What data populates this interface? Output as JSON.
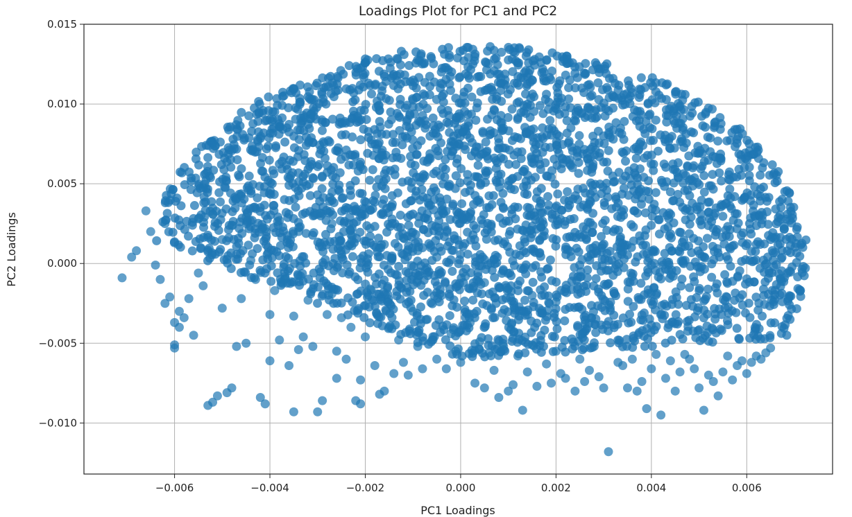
{
  "chart_data": {
    "type": "scatter",
    "title": "Loadings Plot for PC1 and PC2",
    "xlabel": "PC1 Loadings",
    "ylabel": "PC2 Loadings",
    "xlim": [
      -0.0079,
      0.0078
    ],
    "ylim": [
      -0.0132,
      0.015
    ],
    "x_ticks": [
      -0.006,
      -0.004,
      -0.002,
      0.0,
      0.002,
      0.004,
      0.006
    ],
    "x_tick_labels": [
      "−0.006",
      "−0.004",
      "−0.002",
      "0.000",
      "0.002",
      "0.004",
      "0.006"
    ],
    "y_ticks": [
      -0.01,
      -0.005,
      0.0,
      0.005,
      0.01,
      0.015
    ],
    "y_tick_labels": [
      "−0.010",
      "−0.005",
      "0.000",
      "0.005",
      "0.010",
      "0.015"
    ],
    "grid": true,
    "legend": "none",
    "marker_color": "#1f77b4",
    "marker_alpha": 0.7,
    "points": [
      [
        -0.0071,
        -0.0009
      ],
      [
        -0.0069,
        0.0004
      ],
      [
        -0.0068,
        0.0008
      ],
      [
        -0.0066,
        0.0033
      ],
      [
        -0.0065,
        0.002
      ],
      [
        -0.0064,
        -0.0001
      ],
      [
        -0.0063,
        -0.001
      ],
      [
        -0.0062,
        0.0025
      ],
      [
        -0.0062,
        -0.0025
      ],
      [
        -0.0061,
        -0.0021
      ],
      [
        -0.006,
        -0.0037
      ],
      [
        -0.006,
        -0.0051
      ],
      [
        -0.006,
        -0.0053
      ],
      [
        -0.0059,
        -0.003
      ],
      [
        -0.0059,
        -0.004
      ],
      [
        -0.0058,
        -0.0034
      ],
      [
        -0.0057,
        -0.0022
      ],
      [
        -0.0056,
        -0.0045
      ],
      [
        -0.0055,
        -0.0006
      ],
      [
        -0.0054,
        -0.0014
      ],
      [
        -0.0053,
        -0.0089
      ],
      [
        -0.0052,
        -0.0087
      ],
      [
        -0.0051,
        -0.0083
      ],
      [
        -0.005,
        -0.0028
      ],
      [
        -0.005,
        0.0015
      ],
      [
        -0.0049,
        -0.0081
      ],
      [
        -0.0048,
        -0.0078
      ],
      [
        -0.0047,
        -0.0052
      ],
      [
        -0.0046,
        -0.0022
      ],
      [
        -0.0045,
        -0.005
      ],
      [
        -0.0044,
        0.0002
      ],
      [
        -0.0043,
        -0.001
      ],
      [
        -0.0042,
        -0.0084
      ],
      [
        -0.0041,
        -0.0088
      ],
      [
        -0.004,
        -0.0032
      ],
      [
        -0.004,
        -0.0061
      ],
      [
        -0.0039,
        -0.0017
      ],
      [
        -0.0038,
        -0.0048
      ],
      [
        -0.0037,
        -0.001
      ],
      [
        -0.0036,
        -0.0064
      ],
      [
        -0.0035,
        -0.0033
      ],
      [
        -0.0035,
        -0.0093
      ],
      [
        -0.0034,
        -0.0054
      ],
      [
        -0.0033,
        -0.0046
      ],
      [
        -0.0032,
        -0.0023
      ],
      [
        -0.0031,
        -0.0052
      ],
      [
        -0.003,
        -0.0093
      ],
      [
        -0.0029,
        -0.0086
      ],
      [
        -0.0028,
        -0.0032
      ],
      [
        -0.0027,
        -0.0019
      ],
      [
        -0.0026,
        -0.0072
      ],
      [
        -0.0026,
        -0.0055
      ],
      [
        -0.0025,
        -0.0034
      ],
      [
        -0.0024,
        -0.006
      ],
      [
        -0.0023,
        -0.004
      ],
      [
        -0.0022,
        -0.0086
      ],
      [
        -0.0021,
        -0.0088
      ],
      [
        -0.0021,
        -0.0073
      ],
      [
        -0.002,
        -0.0046
      ],
      [
        -0.0019,
        -0.0016
      ],
      [
        -0.0018,
        -0.0064
      ],
      [
        -0.0017,
        -0.0082
      ],
      [
        -0.0016,
        -0.008
      ],
      [
        -0.0015,
        -0.004
      ],
      [
        -0.0014,
        -0.0069
      ],
      [
        -0.0013,
        -0.0048
      ],
      [
        -0.0012,
        -0.0062
      ],
      [
        -0.0011,
        -0.007
      ],
      [
        -0.001,
        -0.003
      ],
      [
        -0.0009,
        -0.0052
      ],
      [
        -0.0008,
        -0.0066
      ],
      [
        -0.0007,
        -0.0035
      ],
      [
        -0.0006,
        -0.0048
      ],
      [
        -0.0005,
        -0.006
      ],
      [
        -0.0004,
        -0.002
      ],
      [
        -0.0003,
        -0.0066
      ],
      [
        -0.0002,
        -0.0044
      ],
      [
        -0.0001,
        -0.0055
      ],
      [
        0.0,
        -0.0062
      ],
      [
        0.0002,
        -0.0037
      ],
      [
        0.0003,
        -0.0075
      ],
      [
        0.0004,
        -0.0049
      ],
      [
        0.0005,
        -0.0078
      ],
      [
        0.0006,
        -0.0056
      ],
      [
        0.0007,
        -0.0067
      ],
      [
        0.0008,
        -0.0084
      ],
      [
        0.0009,
        -0.0052
      ],
      [
        0.001,
        -0.008
      ],
      [
        0.0011,
        -0.0076
      ],
      [
        0.0012,
        -0.0058
      ],
      [
        0.0013,
        -0.0092
      ],
      [
        0.0014,
        -0.0068
      ],
      [
        0.0015,
        -0.0051
      ],
      [
        0.0016,
        -0.0077
      ],
      [
        0.0018,
        -0.0063
      ],
      [
        0.0019,
        -0.0075
      ],
      [
        0.002,
        -0.0055
      ],
      [
        0.0021,
        -0.0069
      ],
      [
        0.0022,
        -0.0072
      ],
      [
        0.0024,
        -0.008
      ],
      [
        0.0025,
        -0.006
      ],
      [
        0.0026,
        -0.0074
      ],
      [
        0.0027,
        -0.0067
      ],
      [
        0.0028,
        -0.0052
      ],
      [
        0.0029,
        -0.0071
      ],
      [
        0.003,
        -0.0078
      ],
      [
        0.0031,
        -0.0118
      ],
      [
        0.0033,
        -0.0062
      ],
      [
        0.0034,
        -0.0064
      ],
      [
        0.0035,
        -0.0078
      ],
      [
        0.0036,
        -0.006
      ],
      [
        0.0037,
        -0.008
      ],
      [
        0.0038,
        -0.0074
      ],
      [
        0.0039,
        -0.0091
      ],
      [
        0.004,
        -0.0066
      ],
      [
        0.0041,
        -0.0057
      ],
      [
        0.0042,
        -0.0095
      ],
      [
        0.0043,
        -0.0072
      ],
      [
        0.0044,
        -0.0061
      ],
      [
        0.0045,
        -0.008
      ],
      [
        0.0046,
        -0.0068
      ],
      [
        0.0047,
        -0.0057
      ],
      [
        0.0048,
        -0.006
      ],
      [
        0.0049,
        -0.0066
      ],
      [
        0.005,
        -0.0078
      ],
      [
        0.0051,
        -0.0092
      ],
      [
        0.0052,
        -0.007
      ],
      [
        0.0053,
        -0.0074
      ],
      [
        0.0054,
        -0.0083
      ],
      [
        0.0055,
        -0.0068
      ],
      [
        0.0056,
        -0.0058
      ],
      [
        0.0057,
        -0.0073
      ],
      [
        0.0058,
        -0.0064
      ],
      [
        0.0059,
        -0.0061
      ],
      [
        0.006,
        -0.0069
      ],
      [
        0.0061,
        -0.0062
      ],
      [
        0.0062,
        -0.0058
      ],
      [
        0.0063,
        -0.006
      ],
      [
        0.0064,
        -0.0056
      ],
      [
        0.0065,
        -0.0053
      ],
      [
        -0.0055,
        0.0028
      ],
      [
        -0.0052,
        0.0031
      ],
      [
        -0.0048,
        0.0024
      ],
      [
        -0.0045,
        0.0029
      ],
      [
        -0.0041,
        0.0022
      ],
      [
        -0.0038,
        0.0027
      ],
      [
        -0.0034,
        0.002
      ],
      [
        -0.003,
        0.0031
      ],
      [
        -0.0027,
        0.0025
      ],
      [
        -0.0023,
        0.0018
      ],
      [
        -0.0019,
        0.0022
      ],
      [
        -0.0016,
        0.0012
      ],
      [
        -0.0012,
        0.0016
      ],
      [
        -0.0009,
        0.0008
      ],
      [
        -0.0005,
        0.0004
      ],
      [
        0.0001,
        -0.0008
      ],
      [
        0.0005,
        -0.0012
      ],
      [
        0.001,
        -0.0016
      ],
      [
        0.0015,
        -0.002
      ],
      [
        0.002,
        -0.0024
      ]
    ]
  }
}
